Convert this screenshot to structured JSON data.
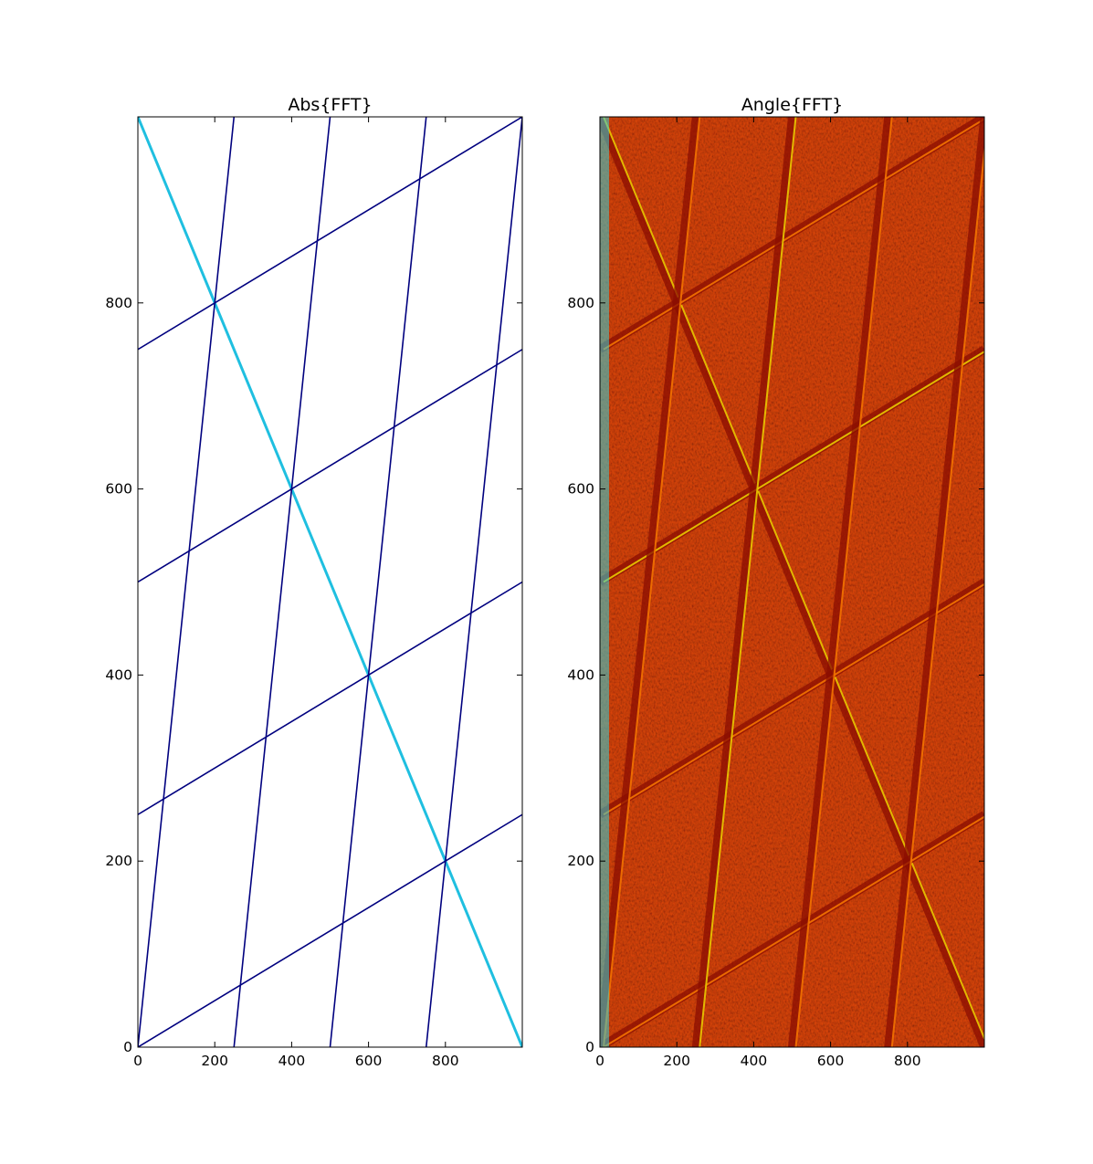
{
  "chart_data": [
    {
      "type": "heatmap",
      "title": "Abs{FFT}",
      "xlabel": "",
      "ylabel": "",
      "xlim": [
        0,
        1000
      ],
      "ylim": [
        0,
        1000
      ],
      "xticks": [
        "0",
        "200",
        "400",
        "600",
        "800"
      ],
      "xtick_values": [
        0,
        200,
        400,
        600,
        800
      ],
      "yticks": [
        "0",
        "200",
        "400",
        "600",
        "800"
      ],
      "ytick_values": [
        0,
        200,
        400,
        600,
        800
      ],
      "grid": false,
      "background_color": "#ffffff",
      "colors": {
        "lines": "#00007f",
        "anti_diagonal": "#1fbfe0"
      },
      "lines": [
        {
          "x": [
            0,
            1000
          ],
          "y": [
            1000,
            0
          ],
          "color": "anti_diagonal"
        },
        {
          "x": [
            0,
            1000
          ],
          "y": [
            0,
            250
          ]
        },
        {
          "x": [
            0,
            1000
          ],
          "y": [
            250,
            500
          ]
        },
        {
          "x": [
            0,
            1000
          ],
          "y": [
            500,
            750
          ]
        },
        {
          "x": [
            0,
            1000
          ],
          "y": [
            750,
            1000
          ]
        },
        {
          "x": [
            0,
            250
          ],
          "y": [
            0,
            1000
          ]
        },
        {
          "x": [
            250,
            500
          ],
          "y": [
            0,
            1000
          ]
        },
        {
          "x": [
            500,
            750
          ],
          "y": [
            0,
            1000
          ]
        },
        {
          "x": [
            750,
            1000
          ],
          "y": [
            0,
            1000
          ]
        }
      ]
    },
    {
      "type": "heatmap",
      "title": "Angle{FFT}",
      "xlabel": "",
      "ylabel": "",
      "xlim": [
        0,
        1000
      ],
      "ylim": [
        0,
        1000
      ],
      "xticks": [
        "0",
        "200",
        "400",
        "600",
        "800"
      ],
      "xtick_values": [
        0,
        200,
        400,
        600,
        800
      ],
      "yticks": [
        "0",
        "200",
        "400",
        "600",
        "800"
      ],
      "ytick_values": [
        0,
        200,
        400,
        600,
        800
      ],
      "grid": false,
      "colormap": "jet",
      "colors": {
        "base": "#d94c0e",
        "dark": "#8b0d02",
        "orange": "#ff7f00",
        "yellow": "#f4e000",
        "green": "#7fff7a",
        "cyan": "#33d4d8"
      },
      "lines": [
        {
          "x": [
            0,
            1000
          ],
          "y": [
            1000,
            0
          ]
        },
        {
          "x": [
            0,
            1000
          ],
          "y": [
            0,
            250
          ]
        },
        {
          "x": [
            0,
            1000
          ],
          "y": [
            250,
            500
          ]
        },
        {
          "x": [
            0,
            1000
          ],
          "y": [
            500,
            750
          ]
        },
        {
          "x": [
            0,
            1000
          ],
          "y": [
            750,
            1000
          ]
        },
        {
          "x": [
            0,
            250
          ],
          "y": [
            0,
            1000
          ]
        },
        {
          "x": [
            250,
            500
          ],
          "y": [
            0,
            1000
          ]
        },
        {
          "x": [
            500,
            750
          ],
          "y": [
            0,
            1000
          ]
        },
        {
          "x": [
            750,
            1000
          ],
          "y": [
            0,
            1000
          ]
        }
      ]
    }
  ]
}
